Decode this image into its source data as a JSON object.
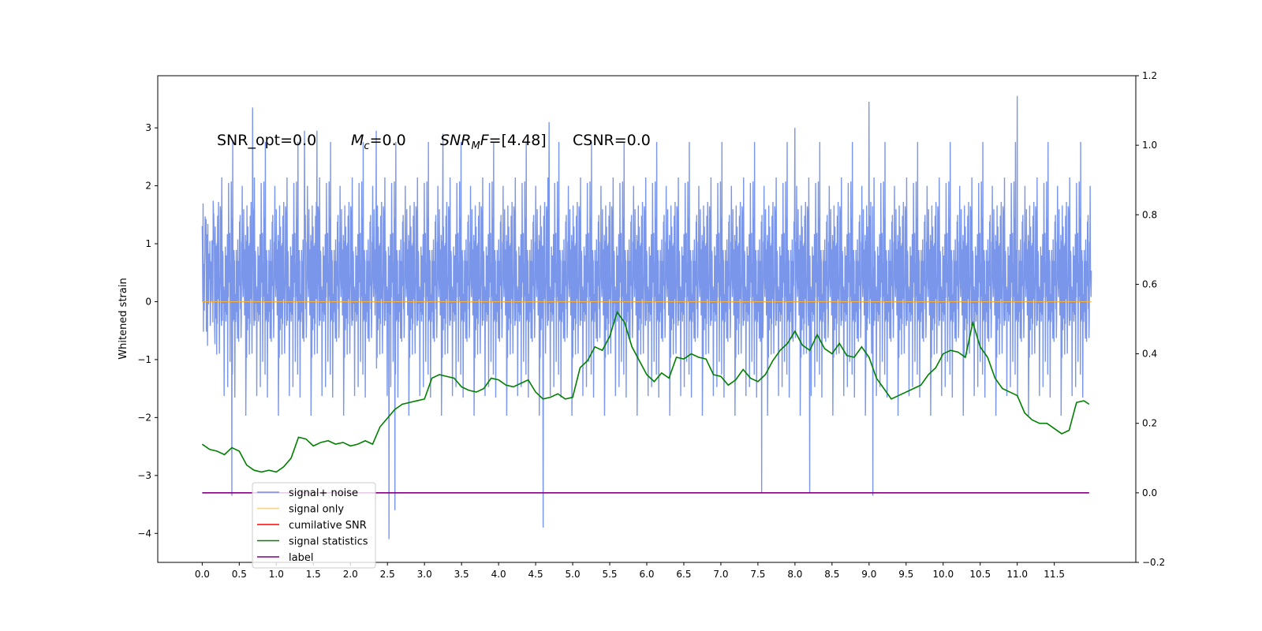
{
  "chart_data": {
    "type": "line",
    "title": "",
    "xlabel": "",
    "ylabel": "Whitened strain",
    "y2label": "",
    "xlim": [
      -0.6,
      12.6
    ],
    "ylim": [
      -4.5,
      3.9
    ],
    "y2lim": [
      -0.2,
      1.2
    ],
    "x_ticks": [
      "0.0",
      "0.5",
      "1.0",
      "1.5",
      "2.0",
      "2.5",
      "3.0",
      "3.5",
      "4.0",
      "4.5",
      "5.0",
      "5.5",
      "6.0",
      "6.5",
      "7.0",
      "7.5",
      "8.0",
      "8.5",
      "9.0",
      "9.5",
      "10.0",
      "10.5",
      "11.0",
      "11.5"
    ],
    "y_ticks": [
      "−4",
      "−3",
      "−2",
      "−1",
      "0",
      "1",
      "2",
      "3"
    ],
    "y2_ticks": [
      "−0.2",
      "0.0",
      "0.2",
      "0.4",
      "0.6",
      "0.8",
      "1.0",
      "1.2"
    ],
    "grid": false,
    "legend_position": "lower-left",
    "annotations": {
      "snr_opt": "SNR_opt=0.0",
      "mc_sym": "M",
      "mc_sub": "c",
      "mc_val": "=0.0",
      "snrmf_sym": "SNR",
      "snrmf_sub": "M",
      "snrmf_sym2": "F",
      "snrmf_val": "=[4.48]",
      "csnr": "CSNR=0.0"
    },
    "series": [
      {
        "name": "signal+ noise",
        "color": "#4169e1",
        "axis": "left",
        "x_range": [
          0.0,
          12.0
        ],
        "noise_sigma": 0.9,
        "notable_spikes": [
          [
            0.68,
            3.35
          ],
          [
            0.4,
            -3.35
          ],
          [
            1.38,
            2.95
          ],
          [
            1.55,
            2.95
          ],
          [
            2.35,
            2.95
          ],
          [
            3.25,
            2.9
          ],
          [
            4.68,
            3.1
          ],
          [
            8.0,
            3.0
          ],
          [
            9.0,
            3.45
          ],
          [
            11.0,
            3.55
          ],
          [
            2.6,
            -3.6
          ],
          [
            2.52,
            -4.1
          ],
          [
            4.6,
            -3.9
          ],
          [
            9.05,
            -3.35
          ],
          [
            7.55,
            -3.3
          ],
          [
            8.2,
            -3.3
          ]
        ]
      },
      {
        "name": "signal only",
        "color": "#f5b041",
        "axis": "left",
        "x": [
          0.0,
          12.0
        ],
        "y": [
          0.0,
          0.0
        ]
      },
      {
        "name": "cumilative SNR",
        "color": "#ff0000",
        "axis": "right",
        "x": [],
        "y": []
      },
      {
        "name": "signal statistics",
        "color": "#008000",
        "axis": "right",
        "x": [
          0.0,
          0.1,
          0.2,
          0.3,
          0.4,
          0.5,
          0.6,
          0.7,
          0.8,
          0.9,
          1.0,
          1.1,
          1.2,
          1.3,
          1.4,
          1.5,
          1.6,
          1.7,
          1.8,
          1.9,
          2.0,
          2.1,
          2.2,
          2.3,
          2.4,
          2.5,
          2.6,
          2.7,
          2.8,
          2.9,
          3.0,
          3.1,
          3.2,
          3.3,
          3.4,
          3.5,
          3.6,
          3.7,
          3.8,
          3.9,
          4.0,
          4.1,
          4.2,
          4.3,
          4.4,
          4.5,
          4.6,
          4.7,
          4.8,
          4.9,
          5.0,
          5.1,
          5.2,
          5.3,
          5.4,
          5.5,
          5.6,
          5.7,
          5.8,
          5.9,
          6.0,
          6.1,
          6.2,
          6.3,
          6.4,
          6.5,
          6.6,
          6.7,
          6.8,
          6.9,
          7.0,
          7.1,
          7.2,
          7.3,
          7.4,
          7.5,
          7.6,
          7.7,
          7.8,
          7.9,
          8.0,
          8.1,
          8.2,
          8.3,
          8.4,
          8.5,
          8.6,
          8.7,
          8.8,
          8.9,
          9.0,
          9.1,
          9.2,
          9.3,
          9.4,
          9.5,
          9.6,
          9.7,
          9.8,
          9.9,
          10.0,
          10.1,
          10.2,
          10.3,
          10.4,
          10.5,
          10.6,
          10.7,
          10.8,
          10.9,
          11.0,
          11.1,
          11.2,
          11.3,
          11.4,
          11.5,
          11.6,
          11.7,
          11.8,
          11.9,
          11.97
        ],
        "y": [
          0.14,
          0.125,
          0.12,
          0.11,
          0.13,
          0.12,
          0.08,
          0.065,
          0.06,
          0.065,
          0.06,
          0.075,
          0.1,
          0.16,
          0.155,
          0.135,
          0.145,
          0.15,
          0.14,
          0.145,
          0.135,
          0.14,
          0.15,
          0.14,
          0.19,
          0.215,
          0.24,
          0.255,
          0.26,
          0.265,
          0.27,
          0.33,
          0.34,
          0.335,
          0.33,
          0.305,
          0.295,
          0.29,
          0.3,
          0.33,
          0.325,
          0.31,
          0.305,
          0.315,
          0.325,
          0.29,
          0.27,
          0.275,
          0.285,
          0.27,
          0.275,
          0.36,
          0.38,
          0.42,
          0.41,
          0.45,
          0.52,
          0.49,
          0.42,
          0.38,
          0.34,
          0.32,
          0.345,
          0.33,
          0.39,
          0.385,
          0.4,
          0.39,
          0.385,
          0.34,
          0.335,
          0.31,
          0.325,
          0.355,
          0.33,
          0.32,
          0.34,
          0.38,
          0.41,
          0.43,
          0.465,
          0.425,
          0.41,
          0.455,
          0.415,
          0.4,
          0.43,
          0.395,
          0.39,
          0.42,
          0.39,
          0.33,
          0.3,
          0.27,
          0.28,
          0.29,
          0.3,
          0.31,
          0.34,
          0.36,
          0.4,
          0.41,
          0.405,
          0.39,
          0.49,
          0.42,
          0.39,
          0.33,
          0.3,
          0.29,
          0.28,
          0.23,
          0.21,
          0.2,
          0.2,
          0.185,
          0.17,
          0.18,
          0.26,
          0.265,
          0.255
        ]
      },
      {
        "name": "label",
        "color": "#800080",
        "axis": "right",
        "x": [
          0.0,
          11.97
        ],
        "y": [
          0.0,
          0.0
        ]
      }
    ]
  }
}
